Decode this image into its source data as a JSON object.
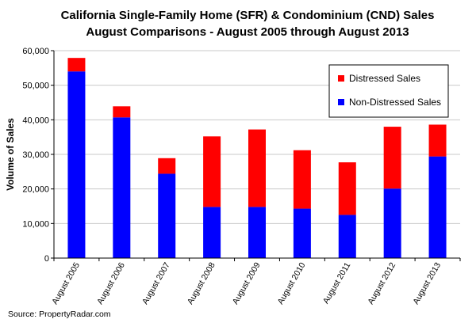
{
  "chart_data": {
    "type": "bar",
    "stacked": true,
    "title": [
      "California Single-Family Home (SFR) & Condominium (CND) Sales",
      "August Comparisons - August 2005 through August 2013"
    ],
    "xlabel": "",
    "ylabel": "Volume of Sales",
    "ylim": [
      0,
      60000
    ],
    "yticks": [
      0,
      10000,
      20000,
      30000,
      40000,
      50000,
      60000
    ],
    "ytick_labels": [
      "0",
      "10,000",
      "20,000",
      "30,000",
      "40,000",
      "50,000",
      "60,000"
    ],
    "categories": [
      "August 2005",
      "August 2006",
      "August 2007",
      "August 2008",
      "August 2009",
      "August 2010",
      "August 2011",
      "August 2012",
      "August 2013"
    ],
    "series": [
      {
        "name": "Non-Distressed Sales",
        "color": "#0000ff",
        "values": [
          54000,
          40700,
          24400,
          14800,
          14800,
          14300,
          12500,
          20100,
          29400
        ]
      },
      {
        "name": "Distressed Sales",
        "color": "#ff0000",
        "values": [
          3900,
          3200,
          4500,
          20400,
          22400,
          16900,
          15200,
          17900,
          9200
        ]
      }
    ],
    "legend": {
      "position": "top-right",
      "entries": [
        "Distressed Sales",
        "Non-Distressed Sales"
      ]
    },
    "grid": true,
    "source": "Source: PropertyRadar.com"
  }
}
